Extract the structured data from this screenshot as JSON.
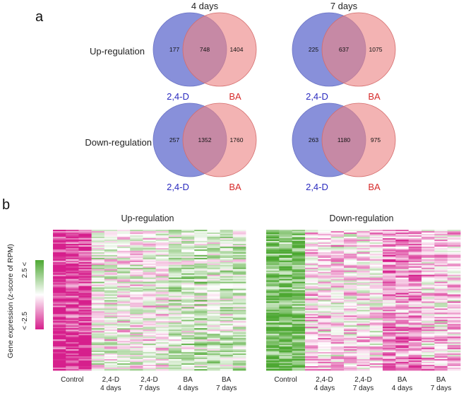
{
  "panel_a": {
    "label": "a",
    "columns": [
      "4 days",
      "7 days"
    ],
    "rows": [
      "Up-regulation",
      "Down-regulation"
    ],
    "set_left": "2,4-D",
    "set_right": "BA",
    "colors": {
      "left": "#7b84d6",
      "right": "#ec8585",
      "overlap": "#a85070",
      "left_text": "#2a2abf",
      "right_text": "#d62a2a"
    },
    "venns": [
      {
        "name": "up-4days",
        "left_only": "177",
        "both": "748",
        "right_only": "1404"
      },
      {
        "name": "up-7days",
        "left_only": "225",
        "both": "637",
        "right_only": "1075"
      },
      {
        "name": "down-4days",
        "left_only": "257",
        "both": "1352",
        "right_only": "1760"
      },
      {
        "name": "down-7days",
        "left_only": "263",
        "both": "1180",
        "right_only": "975"
      }
    ]
  },
  "panel_b": {
    "label": "b",
    "colorbar": {
      "top_label": "2.5 <",
      "bottom_label": "< -2.5",
      "axis_label": "Gene expression (z-score of RPM)",
      "high_color": "#4da832",
      "mid_color": "#ffffff",
      "low_color": "#d61f8c"
    },
    "heatmaps": [
      {
        "title": "Up-regulation",
        "groups": [
          {
            "line1": "Control",
            "line2": ""
          },
          {
            "line1": "2,4-D",
            "line2": "4 days"
          },
          {
            "line1": "2,4-D",
            "line2": "7 days"
          },
          {
            "line1": "BA",
            "line2": "4 days"
          },
          {
            "line1": "BA",
            "line2": "7 days"
          }
        ],
        "group_bias": [
          -0.9,
          0.05,
          0.0,
          0.3,
          0.25
        ]
      },
      {
        "title": "Down-regulation",
        "groups": [
          {
            "line1": "Control",
            "line2": ""
          },
          {
            "line1": "2,4-D",
            "line2": "4 days"
          },
          {
            "line1": "2,4-D",
            "line2": "7 days"
          },
          {
            "line1": "BA",
            "line2": "4 days"
          },
          {
            "line1": "BA",
            "line2": "7 days"
          }
        ],
        "group_bias": [
          0.7,
          -0.15,
          -0.1,
          -0.45,
          -0.2
        ]
      }
    ]
  }
}
